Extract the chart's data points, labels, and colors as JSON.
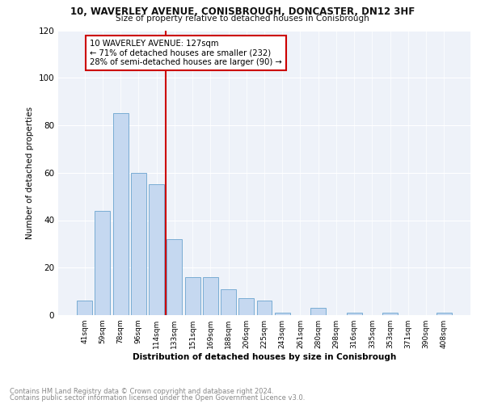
{
  "title_line1": "10, WAVERLEY AVENUE, CONISBROUGH, DONCASTER, DN12 3HF",
  "title_line2": "Size of property relative to detached houses in Conisbrough",
  "xlabel": "Distribution of detached houses by size in Conisbrough",
  "ylabel": "Number of detached properties",
  "categories": [
    "41sqm",
    "59sqm",
    "78sqm",
    "96sqm",
    "114sqm",
    "133sqm",
    "151sqm",
    "169sqm",
    "188sqm",
    "206sqm",
    "225sqm",
    "243sqm",
    "261sqm",
    "280sqm",
    "298sqm",
    "316sqm",
    "335sqm",
    "353sqm",
    "371sqm",
    "390sqm",
    "408sqm"
  ],
  "values": [
    6,
    44,
    85,
    60,
    55,
    32,
    16,
    16,
    11,
    7,
    6,
    1,
    0,
    3,
    0,
    1,
    0,
    1,
    0,
    0,
    1
  ],
  "bar_color": "#c5d8f0",
  "bar_edge_color": "#7aadd4",
  "vline_x_index": 4.5,
  "vline_color": "#cc0000",
  "annotation_text": "10 WAVERLEY AVENUE: 127sqm\n← 71% of detached houses are smaller (232)\n28% of semi-detached houses are larger (90) →",
  "annotation_box_color": "#ffffff",
  "annotation_box_edge": "#cc0000",
  "ylim": [
    0,
    120
  ],
  "yticks": [
    0,
    20,
    40,
    60,
    80,
    100,
    120
  ],
  "footer_line1": "Contains HM Land Registry data © Crown copyright and database right 2024.",
  "footer_line2": "Contains public sector information licensed under the Open Government Licence v3.0.",
  "footer_color": "#888888",
  "bg_color": "#eef2f9"
}
